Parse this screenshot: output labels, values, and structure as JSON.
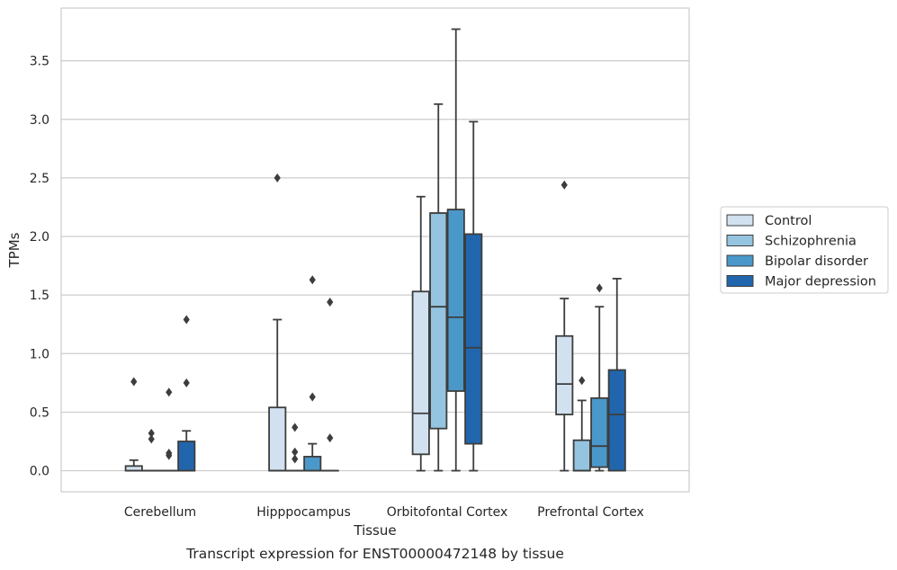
{
  "caption": "Transcript expression for ENST00000472148 by tissue",
  "chart_data": {
    "type": "box",
    "xlabel": "Tissue",
    "ylabel": "TPMs",
    "ylim": [
      -0.18,
      3.95
    ],
    "yticks": [
      0.0,
      0.5,
      1.0,
      1.5,
      2.0,
      2.5,
      3.0,
      3.5
    ],
    "ytick_labels": [
      "0.0",
      "0.5",
      "1.0",
      "1.5",
      "2.0",
      "2.5",
      "3.0",
      "3.5"
    ],
    "grid": true,
    "legend_position": "right",
    "categories": [
      "Cerebellum",
      "Hipppocampus",
      "Orbitofontal Cortex",
      "Prefrontal Cortex"
    ],
    "series": [
      {
        "name": "Control",
        "color": "#d1e1f0",
        "boxes": [
          {
            "q1": 0.0,
            "median": 0.0,
            "q3": 0.04,
            "whislo": 0.0,
            "whishi": 0.09,
            "fliers": [
              0.76
            ]
          },
          {
            "q1": 0.0,
            "median": 0.0,
            "q3": 0.54,
            "whislo": 0.0,
            "whishi": 1.29,
            "fliers": [
              2.5
            ]
          },
          {
            "q1": 0.14,
            "median": 0.49,
            "q3": 1.53,
            "whislo": 0.0,
            "whishi": 2.34,
            "fliers": []
          },
          {
            "q1": 0.48,
            "median": 0.74,
            "q3": 1.15,
            "whislo": 0.0,
            "whishi": 1.47,
            "fliers": [
              2.44
            ]
          }
        ]
      },
      {
        "name": "Schizophrenia",
        "color": "#94c4df",
        "boxes": [
          {
            "q1": 0.0,
            "median": 0.0,
            "q3": 0.0,
            "whislo": 0.0,
            "whishi": 0.0,
            "fliers": [
              0.32,
              0.27
            ]
          },
          {
            "q1": 0.0,
            "median": 0.0,
            "q3": 0.0,
            "whislo": 0.0,
            "whishi": 0.0,
            "fliers": [
              0.37,
              0.16,
              0.1
            ]
          },
          {
            "q1": 0.36,
            "median": 1.4,
            "q3": 2.2,
            "whislo": 0.0,
            "whishi": 3.13,
            "fliers": []
          },
          {
            "q1": 0.0,
            "median": 0.0,
            "q3": 0.26,
            "whislo": 0.0,
            "whishi": 0.6,
            "fliers": [
              0.77
            ]
          }
        ]
      },
      {
        "name": "Bipolar disorder",
        "color": "#4a98c9",
        "boxes": [
          {
            "q1": 0.0,
            "median": 0.0,
            "q3": 0.0,
            "whislo": 0.0,
            "whishi": 0.0,
            "fliers": [
              0.67,
              0.15,
              0.13
            ]
          },
          {
            "q1": 0.0,
            "median": 0.0,
            "q3": 0.12,
            "whislo": 0.0,
            "whishi": 0.23,
            "fliers": [
              1.63,
              0.63
            ]
          },
          {
            "q1": 0.68,
            "median": 1.31,
            "q3": 2.23,
            "whislo": 0.0,
            "whishi": 3.77,
            "fliers": []
          },
          {
            "q1": 0.03,
            "median": 0.21,
            "q3": 0.62,
            "whislo": 0.0,
            "whishi": 1.4,
            "fliers": [
              1.56
            ]
          }
        ]
      },
      {
        "name": "Major depression",
        "color": "#2166ac",
        "boxes": [
          {
            "q1": 0.0,
            "median": 0.0,
            "q3": 0.25,
            "whislo": 0.0,
            "whishi": 0.34,
            "fliers": [
              1.29,
              0.75
            ]
          },
          {
            "q1": 0.0,
            "median": 0.0,
            "q3": 0.0,
            "whislo": 0.0,
            "whishi": 0.0,
            "fliers": [
              1.44,
              0.28
            ]
          },
          {
            "q1": 0.23,
            "median": 1.05,
            "q3": 2.02,
            "whislo": 0.0,
            "whishi": 2.98,
            "fliers": []
          },
          {
            "q1": 0.0,
            "median": 0.48,
            "q3": 0.86,
            "whislo": 0.0,
            "whishi": 1.64,
            "fliers": []
          }
        ]
      }
    ]
  }
}
